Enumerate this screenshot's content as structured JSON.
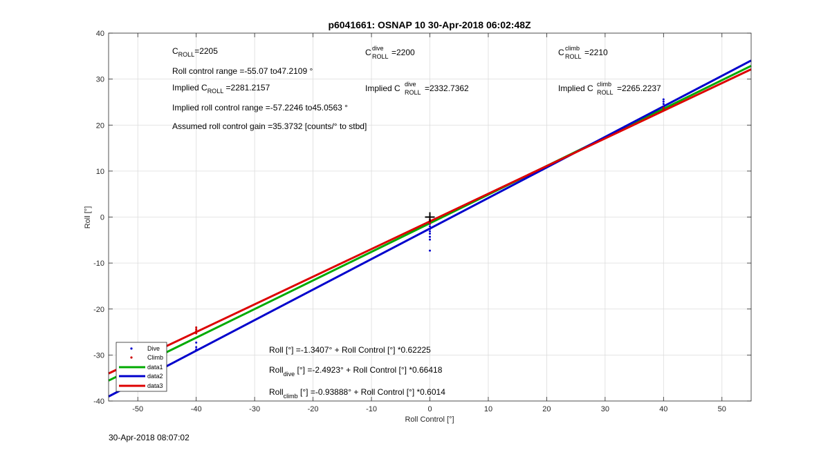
{
  "colors": {
    "dive": "#0000cc",
    "climb": "#cc0000",
    "data1": "#00aa00",
    "data2": "#0000cc",
    "data3": "#dd0000"
  },
  "chart_data": {
    "type": "scatter",
    "title": "p6041661: OSNAP 10 30-Apr-2018 06:02:48Z",
    "xlabel": "Roll Control [°]",
    "ylabel": "Roll [°]",
    "xlim": [
      -55,
      55
    ],
    "ylim": [
      -40,
      40
    ],
    "xticks": [
      -50,
      -40,
      -30,
      -20,
      -10,
      0,
      10,
      20,
      30,
      40,
      50
    ],
    "yticks": [
      -40,
      -30,
      -20,
      -10,
      0,
      10,
      20,
      30,
      40
    ],
    "grid": true,
    "legend_position": "bottom-left",
    "series": [
      {
        "name": "Dive",
        "kind": "points",
        "color": "#0000cc",
        "points": [
          [
            -40,
            -27.3
          ],
          [
            -40,
            -28.3
          ],
          [
            -40,
            -28.8
          ],
          [
            0,
            -1.5
          ],
          [
            0,
            -2.0
          ],
          [
            0,
            -2.6
          ],
          [
            0,
            -3.1
          ],
          [
            0,
            -3.6
          ],
          [
            0,
            -4.3
          ],
          [
            0,
            -4.9
          ],
          [
            0,
            -7.3
          ],
          [
            40,
            24.0
          ],
          [
            40,
            24.6
          ],
          [
            40,
            25.1
          ],
          [
            40,
            25.6
          ]
        ]
      },
      {
        "name": "Climb",
        "kind": "points",
        "color": "#cc0000",
        "points": [
          [
            -40,
            -24.0
          ],
          [
            -40,
            -24.4
          ],
          [
            -40,
            -24.8
          ],
          [
            -40,
            -25.3
          ],
          [
            0,
            -0.6
          ],
          [
            0,
            -1.0
          ],
          [
            0,
            -1.4
          ],
          [
            40,
            23.4
          ],
          [
            40,
            23.8
          ]
        ]
      },
      {
        "name": "data1",
        "kind": "line",
        "color": "#00aa00",
        "slope": 0.62225,
        "intercept": -1.3407
      },
      {
        "name": "data2",
        "kind": "line",
        "color": "#0000cc",
        "slope": 0.66418,
        "intercept": -2.4923
      },
      {
        "name": "data3",
        "kind": "line",
        "color": "#dd0000",
        "slope": 0.6014,
        "intercept": -0.93888
      }
    ],
    "marker": {
      "symbol": "+",
      "x": 0,
      "y": 0
    },
    "annotations": {
      "c_roll": {
        "base": "C",
        "sub": "ROLL",
        "text": "=2205"
      },
      "roll_range": "Roll control range =-55.07 to47.2109 °",
      "implied_c_roll": {
        "pre": "Implied C",
        "sub": "ROLL",
        "text": " =2281.2157"
      },
      "implied_range": "Implied roll control range =-57.2246 to45.0563 °",
      "gain": "Assumed roll control gain =35.3732 [counts/° to stbd]",
      "c_dive": {
        "base": "C",
        "sup": "dive",
        "sub": "ROLL",
        "text": " =2200"
      },
      "implied_c_dive": {
        "pre": "Implied C",
        "sup": "dive",
        "sub": "ROLL",
        "text": " =2332.7362"
      },
      "c_climb": {
        "base": "C",
        "sup": "climb",
        "sub": "ROLL",
        "text": " =2210"
      },
      "implied_c_climb": {
        "pre": "Implied C",
        "sup": "climb",
        "sub": "ROLL",
        "text": " =2265.2237"
      },
      "eq1": "Roll [°] =-1.3407° + Roll Control [°] *0.62225",
      "eq2": {
        "base": "Roll",
        "sub": "dive",
        "text": " [°] =-2.4923° + Roll Control [°] *0.66418"
      },
      "eq3": {
        "base": "Roll",
        "sub": "climb",
        "text": " [°] =-0.93888° + Roll Control [°] *0.6014"
      }
    }
  },
  "timestamp": "30-Apr-2018 08:07:02"
}
